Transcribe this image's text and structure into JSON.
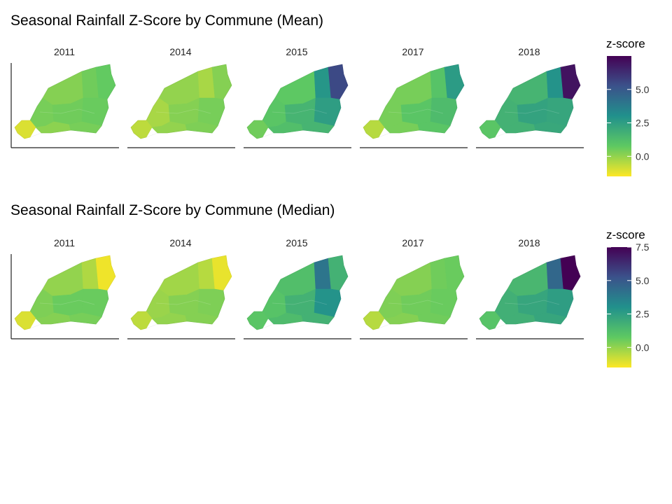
{
  "panels": [
    {
      "title": "Seasonal Rainfall Z-Score by Commune (Mean)",
      "legend_title": "z-score",
      "legend_ticks": [
        "5.0",
        "2.5",
        "0.0"
      ],
      "legend_tick_values": [
        5.0,
        2.5,
        0.0
      ],
      "legend_range": [
        -1.5,
        7.5
      ],
      "facets": [
        {
          "year": "2011",
          "regions": {
            "nw": 0.2,
            "n": 0.5,
            "ne": 0.7,
            "w": 0.4,
            "c": 0.5,
            "e": 0.6,
            "sw": -1.0,
            "s": 0.1,
            "se": 0.4
          }
        },
        {
          "year": "2014",
          "regions": {
            "nw": 0.0,
            "n": -0.3,
            "ne": 0.2,
            "w": -0.3,
            "c": 0.2,
            "e": 0.4,
            "sw": -0.6,
            "s": 0.0,
            "se": 0.3
          }
        },
        {
          "year": "2015",
          "regions": {
            "nw": 0.8,
            "n": 2.8,
            "ne": 5.5,
            "w": 0.9,
            "c": 1.6,
            "e": 2.5,
            "sw": 0.5,
            "s": 1.2,
            "se": 1.6
          }
        },
        {
          "year": "2017",
          "regions": {
            "nw": 0.4,
            "n": 1.0,
            "ne": 2.6,
            "w": 0.4,
            "c": 0.9,
            "e": 1.3,
            "sw": -0.5,
            "s": 0.4,
            "se": 0.9
          }
        },
        {
          "year": "2018",
          "regions": {
            "nw": 1.6,
            "n": 2.9,
            "ne": 7.0,
            "w": 1.7,
            "c": 2.3,
            "e": 2.2,
            "sw": 0.9,
            "s": 1.7,
            "se": 2.1
          }
        }
      ]
    },
    {
      "title": "Seasonal Rainfall Z-Score by Commune (Median)",
      "legend_title": "z-score",
      "legend_ticks": [
        "7.5",
        "5.0",
        "2.5",
        "0.0"
      ],
      "legend_tick_values": [
        7.5,
        5.0,
        2.5,
        0.0
      ],
      "legend_range": [
        -1.5,
        7.5
      ],
      "facets": [
        {
          "year": "2011",
          "regions": {
            "nw": 0.0,
            "n": -0.4,
            "ne": -1.3,
            "w": 0.3,
            "c": 0.6,
            "e": 0.6,
            "sw": -1.0,
            "s": 0.2,
            "se": 0.4
          }
        },
        {
          "year": "2014",
          "regions": {
            "nw": -0.2,
            "n": -0.5,
            "ne": -1.2,
            "w": -0.1,
            "c": 0.2,
            "e": 0.3,
            "sw": -0.6,
            "s": 0.0,
            "se": 0.2
          }
        },
        {
          "year": "2015",
          "regions": {
            "nw": 1.2,
            "n": 4.0,
            "ne": 1.7,
            "w": 1.0,
            "c": 1.7,
            "e": 2.9,
            "sw": 0.9,
            "s": 1.3,
            "se": 1.7
          }
        },
        {
          "year": "2017",
          "regions": {
            "nw": 0.2,
            "n": 0.5,
            "ne": 0.6,
            "w": 0.3,
            "c": 0.5,
            "e": 0.6,
            "sw": -0.5,
            "s": 0.2,
            "se": 0.5
          }
        },
        {
          "year": "2018",
          "regions": {
            "nw": 1.5,
            "n": 4.5,
            "ne": 7.6,
            "w": 1.8,
            "c": 2.2,
            "e": 2.5,
            "sw": 1.0,
            "s": 1.8,
            "se": 2.2
          }
        }
      ]
    }
  ]
}
